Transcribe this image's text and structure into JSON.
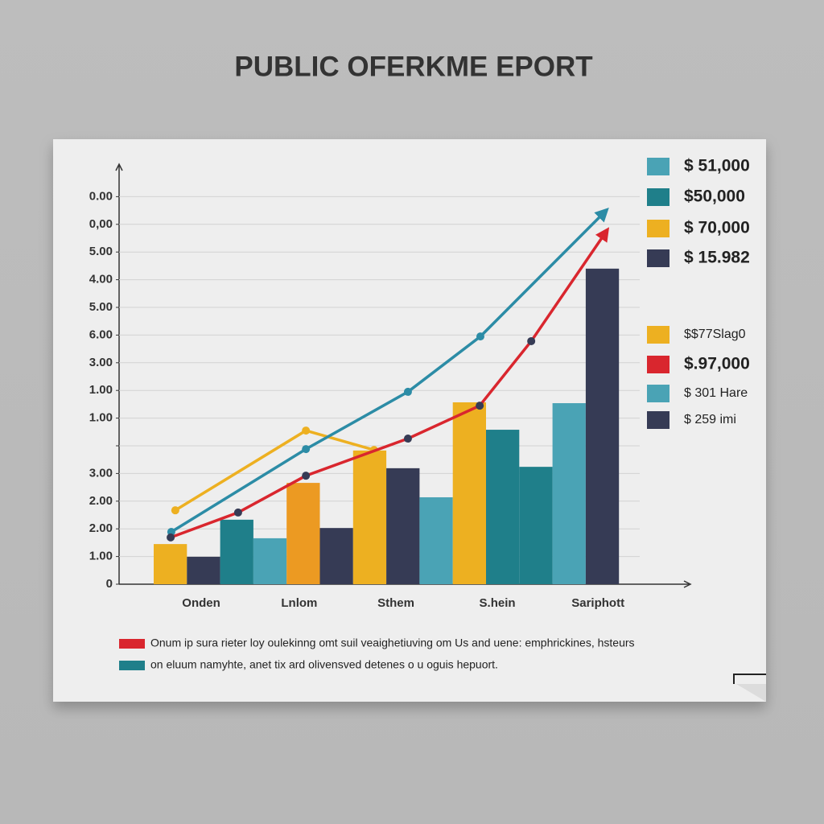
{
  "chart_data": {
    "type": "bar_line",
    "title": "PUBLIC OFERKME EPORT",
    "ylim": [
      0,
      15
    ],
    "yticks": [
      0,
      {
        "value": 1,
        "label": "1.00"
      },
      {
        "value": 2,
        "label": "2.00"
      },
      {
        "value": 3,
        "label": "2.00"
      },
      {
        "value": 4,
        "label": "3.00"
      },
      {
        "value": 5,
        "label": null
      },
      {
        "value": 6,
        "label": "1.00"
      },
      {
        "value": 7,
        "label": "1.00"
      },
      {
        "value": 8,
        "label": "3.00"
      },
      {
        "value": 9,
        "label": "6.00"
      },
      {
        "value": 10,
        "label": "5.00"
      },
      {
        "value": 11,
        "label": "4.00"
      },
      {
        "value": 12,
        "label": "5.00"
      },
      {
        "value": 13,
        "label": "0,00"
      },
      {
        "value": 14,
        "label": "0.00"
      }
    ],
    "xlim": [
      -1,
      16
    ],
    "xticks": [
      {
        "value": 1.43,
        "label": "Onden"
      },
      {
        "value": 4.38,
        "label": "Lnlom"
      },
      {
        "value": 7.29,
        "label": "Sthem"
      },
      {
        "value": 10.34,
        "label": "S.hein"
      },
      {
        "value": 13.37,
        "label": "Sariphott"
      }
    ],
    "grid": true,
    "bars": [
      {
        "color": "#EDB021",
        "value": 1.45
      },
      {
        "color": "#363B55",
        "value": 0.99
      },
      {
        "color": "#1F7F8A",
        "value": 2.33
      },
      {
        "color": "#4AA3B5",
        "value": 1.66
      },
      {
        "color": "#EC9A22",
        "value": 3.66
      },
      {
        "color": "#363B55",
        "value": 2.03
      },
      {
        "color": "#EDB021",
        "value": 4.83
      },
      {
        "color": "#363B55",
        "value": 4.19
      },
      {
        "color": "#4AA3B5",
        "value": 3.14
      },
      {
        "color": "#EDB021",
        "value": 6.57
      },
      {
        "color": "#1F7F8A",
        "value": 5.58
      },
      {
        "color": "#1F7F8A",
        "value": 4.24
      },
      {
        "color": "#4AA3B5",
        "value": 6.54
      },
      {
        "color": "#363B55",
        "value": 11.4
      }
    ],
    "series": [
      {
        "color": "#EDB021",
        "marker_color": "#EDB021",
        "arrow": false,
        "x": [
          0.65,
          4.58,
          6.63
        ],
        "values": [
          2.67,
          5.55,
          4.85
        ]
      },
      {
        "color": "#2C8CA6",
        "marker_color": "#2C8CA6",
        "arrow": true,
        "x": [
          0.53,
          4.58,
          7.65,
          9.83,
          13.58
        ],
        "values": [
          1.89,
          4.88,
          6.95,
          8.95,
          13.46
        ]
      },
      {
        "color": "#D9262E",
        "marker_color": "#363B55",
        "arrow": true,
        "x": [
          0.51,
          2.54,
          4.58,
          7.65,
          9.81,
          11.36,
          13.61
        ],
        "values": [
          1.69,
          2.59,
          3.92,
          5.26,
          6.45,
          8.78,
          12.73
        ]
      }
    ],
    "legend": [
      {
        "label": "$ 51,000",
        "color": "#4AA3B5"
      },
      {
        "label": "$50,000",
        "color": "#1F7F8A"
      },
      {
        "label": "$ 70,000",
        "color": "#EDB021"
      },
      {
        "label": "$ 15.982",
        "color": "#363B55"
      },
      {
        "label": "$$77Slag0",
        "color": "#EDB021"
      },
      {
        "label": "$.97,000",
        "color": "#D9262E"
      },
      {
        "label": "$ 301 Hare",
        "color": "#4AA3B5"
      },
      {
        "label": "$ 259 imi",
        "color": "#363B55"
      }
    ],
    "notes": [
      {
        "label": "Onum ip sura rieter loy oulekinng omt suil veaighetiuving om Us and uene:   emphrickines,  hsteurs",
        "color": "#D9262E"
      },
      {
        "label": "on eluum namyhte, anet  tix ard olivensved  detenes o u oguis hepuort.",
        "color": "#1F7F8A"
      }
    ]
  }
}
